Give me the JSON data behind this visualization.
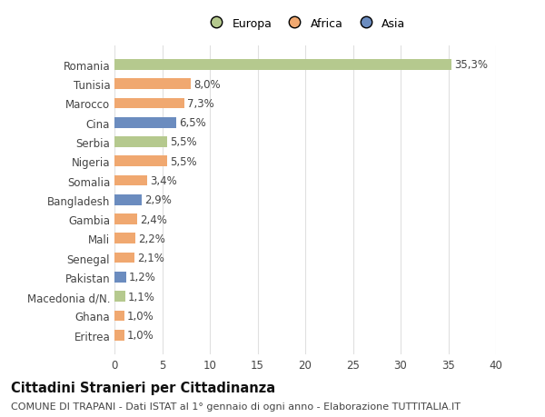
{
  "categories": [
    "Romania",
    "Tunisia",
    "Marocco",
    "Cina",
    "Serbia",
    "Nigeria",
    "Somalia",
    "Bangladesh",
    "Gambia",
    "Mali",
    "Senegal",
    "Pakistan",
    "Macedonia d/N.",
    "Ghana",
    "Eritrea"
  ],
  "values": [
    35.3,
    8.0,
    7.3,
    6.5,
    5.5,
    5.5,
    3.4,
    2.9,
    2.4,
    2.2,
    2.1,
    1.2,
    1.1,
    1.0,
    1.0
  ],
  "labels": [
    "35,3%",
    "8,0%",
    "7,3%",
    "6,5%",
    "5,5%",
    "5,5%",
    "3,4%",
    "2,9%",
    "2,4%",
    "2,2%",
    "2,1%",
    "1,2%",
    "1,1%",
    "1,0%",
    "1,0%"
  ],
  "continent": [
    "Europa",
    "Africa",
    "Africa",
    "Asia",
    "Europa",
    "Africa",
    "Africa",
    "Asia",
    "Africa",
    "Africa",
    "Africa",
    "Asia",
    "Europa",
    "Africa",
    "Africa"
  ],
  "colors": {
    "Europa": "#b5c98e",
    "Africa": "#f0a870",
    "Asia": "#6b8cbf"
  },
  "legend_labels": [
    "Europa",
    "Africa",
    "Asia"
  ],
  "legend_colors": [
    "#b5c98e",
    "#f0a870",
    "#6b8cbf"
  ],
  "xlim": [
    0,
    40
  ],
  "xticks": [
    0,
    5,
    10,
    15,
    20,
    25,
    30,
    35,
    40
  ],
  "title": "Cittadini Stranieri per Cittadinanza",
  "subtitle": "COMUNE DI TRAPANI - Dati ISTAT al 1° gennaio di ogni anno - Elaborazione TUTTITALIA.IT",
  "bg_color": "#ffffff",
  "grid_color": "#e0e0e0",
  "label_fontsize": 8.5,
  "title_fontsize": 10.5,
  "subtitle_fontsize": 8.0
}
